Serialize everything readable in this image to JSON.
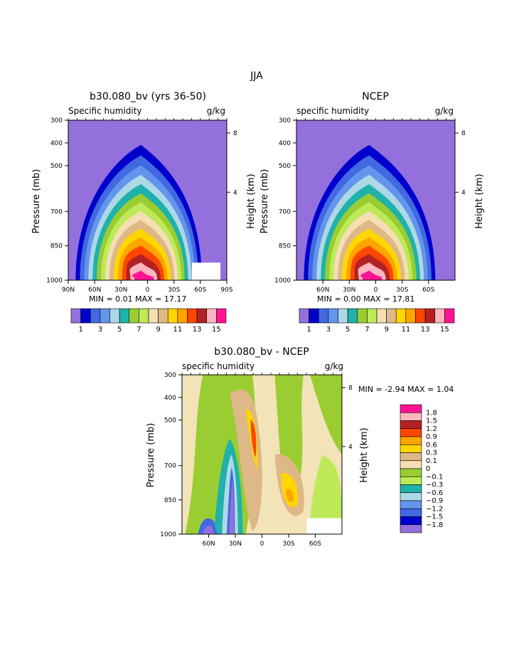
{
  "page_title": "JJA",
  "panels": [
    {
      "title": "b30.080_bv (yrs 36-50)",
      "left_label": "Specific humidity",
      "right_label": "g/kg",
      "y_label": "Pressure (mb)",
      "y2_label": "Height (km)",
      "stats": "MIN =    0.01   MAX =   17.17"
    },
    {
      "title": "NCEP",
      "left_label": "specific humidity",
      "right_label": "g/kg",
      "y_label": "Pressure (mb)",
      "y2_label": "Height (km)",
      "stats": "MIN =    0.00   MAX =   17.81"
    },
    {
      "title": "b30.080_bv - NCEP",
      "left_label": "specific humidity",
      "right_label": "g/kg",
      "y_label": "Pressure (mb)",
      "y2_label": "Height (km)",
      "stats": "MIN =   -2.94   MAX =    1.04"
    }
  ],
  "chart_data": [
    {
      "type": "heatmap",
      "subtype": "filled contour (latitude-pressure cross section)",
      "title": "b30.080_bv (yrs 36-50)",
      "units": "g/kg",
      "y_axis": {
        "label": "Pressure (mb)",
        "ticks": [
          300,
          400,
          500,
          700,
          850,
          1000
        ],
        "range": [
          1000,
          300
        ],
        "reversed": true
      },
      "y2_axis": {
        "label": "Height (km)",
        "ticks": [
          8,
          4
        ]
      },
      "x_axis": {
        "ticks": [
          "90N",
          "60N",
          "30N",
          "0",
          "30S",
          "60S",
          "90S"
        ],
        "range": [
          "90N",
          "90S"
        ]
      },
      "levels": [
        1,
        2,
        3,
        4,
        5,
        6,
        7,
        8,
        9,
        10,
        11,
        12,
        13,
        14,
        15
      ],
      "colorbar_labels": [
        "1",
        "3",
        "5",
        "7",
        "9",
        "11",
        "13",
        "15"
      ],
      "min": 0.01,
      "max": 17.17,
      "peak_latitude": "10N",
      "peak_pressure_mb": 1000
    },
    {
      "type": "heatmap",
      "subtype": "filled contour (latitude-pressure cross section)",
      "title": "NCEP",
      "units": "g/kg",
      "y_axis": {
        "label": "Pressure (mb)",
        "ticks": [
          300,
          400,
          500,
          700,
          850,
          1000
        ],
        "range": [
          1000,
          300
        ],
        "reversed": true
      },
      "y2_axis": {
        "label": "Height (km)",
        "ticks": [
          8,
          4
        ]
      },
      "x_axis": {
        "ticks": [
          "60N",
          "30N",
          "0",
          "30S",
          "60S"
        ],
        "range": [
          "90N",
          "90S"
        ]
      },
      "levels": [
        1,
        2,
        3,
        4,
        5,
        6,
        7,
        8,
        9,
        10,
        11,
        12,
        13,
        14,
        15
      ],
      "colorbar_labels": [
        "1",
        "3",
        "5",
        "7",
        "9",
        "11",
        "13",
        "15"
      ],
      "min": 0.0,
      "max": 17.81,
      "peak_latitude": "10N",
      "peak_pressure_mb": 1000
    },
    {
      "type": "heatmap",
      "subtype": "filled contour difference (latitude-pressure cross section)",
      "title": "b30.080_bv - NCEP",
      "units": "g/kg",
      "y_axis": {
        "label": "Pressure (mb)",
        "ticks": [
          300,
          400,
          500,
          700,
          850,
          1000
        ],
        "range": [
          1000,
          300
        ],
        "reversed": true
      },
      "y2_axis": {
        "label": "Height (km)",
        "ticks": [
          8,
          4
        ]
      },
      "x_axis": {
        "ticks": [
          "60N",
          "30N",
          "0",
          "30S",
          "60S"
        ],
        "range": [
          "90N",
          "90S"
        ]
      },
      "levels": [
        -1.8,
        -1.5,
        -1.2,
        -0.9,
        -0.6,
        -0.3,
        -0.1,
        0,
        0.1,
        0.3,
        0.6,
        0.9,
        1.2,
        1.5,
        1.8
      ],
      "colorbar_labels": [
        "1.8",
        "1.5",
        "1.2",
        "0.9",
        "0.6",
        "0.3",
        "0.1",
        "0",
        "−0.1",
        "−0.3",
        "−0.6",
        "−0.9",
        "−1.2",
        "−1.5",
        "−1.8"
      ],
      "min": -2.94,
      "max": 1.04,
      "legend_placement": "right"
    }
  ],
  "colors": {
    "abs_palette": [
      "#9370DB",
      "#0000CD",
      "#4169E1",
      "#6495ED",
      "#ADD8E6",
      "#20B2AA",
      "#9ACD32",
      "#BEEA5A",
      "#F5DEB3",
      "#DEB887",
      "#FFD700",
      "#FFA500",
      "#FF4500",
      "#B22222",
      "#FFB6C1",
      "#FF1493"
    ],
    "diff_palette": [
      "#FF1493",
      "#FFB6C1",
      "#B22222",
      "#FF4500",
      "#FFA500",
      "#FFD700",
      "#DEB887",
      "#F5DEB3",
      "#9ACD32",
      "#BEEA5A",
      "#20B2AA",
      "#ADD8E6",
      "#6495ED",
      "#4169E1",
      "#0000CD",
      "#9370DB"
    ],
    "diff_base": "#F3E3B8"
  }
}
